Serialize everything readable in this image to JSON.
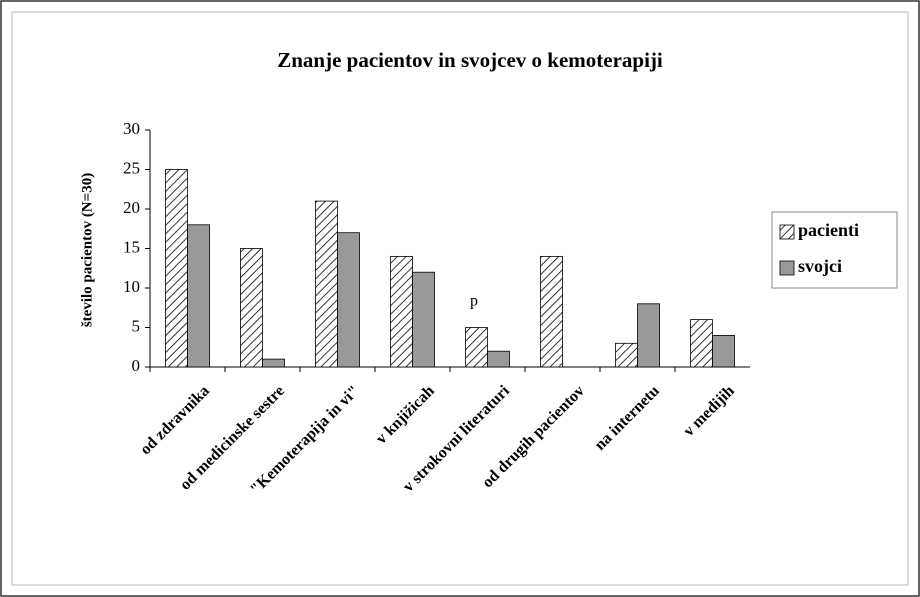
{
  "chart_data": {
    "type": "bar",
    "title": "Znanje pacientov in svojcev o kemoterapiji",
    "y_label": "število pacientov (N=30)",
    "annotation": "p",
    "categories": [
      "od zdravnika",
      "od medicinske sestre",
      "\"Kemoterapija in vi\"",
      "v knjižicah",
      "v strokovni literaturi",
      "od drugih pacientov",
      "na internetu",
      "v medijih"
    ],
    "series": [
      {
        "name": "pacienti",
        "color": "#ffffff",
        "hatch": true,
        "values": [
          25,
          15,
          21,
          14,
          5,
          14,
          3,
          6
        ]
      },
      {
        "name": "svojci",
        "color": "#999999",
        "hatch": false,
        "values": [
          18,
          1,
          17,
          12,
          2,
          0,
          8,
          4
        ]
      }
    ],
    "ylim": [
      0,
      30
    ],
    "yticks": [
      0,
      5,
      10,
      15,
      20,
      25,
      30
    ],
    "grid": false,
    "legend": "right"
  }
}
